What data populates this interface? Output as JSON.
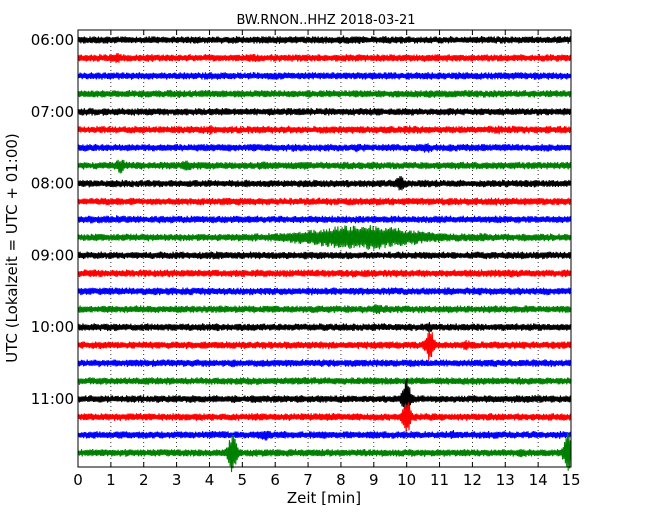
{
  "chart_data": {
    "type": "line",
    "title": "BW.RNON..HHZ 2018-03-21",
    "xlabel": "Zeit  [min]",
    "ylabel": "UTC (Lokalzeit = UTC + 01:00)",
    "xlim": [
      0,
      15
    ],
    "x_ticks": [
      "0",
      "1",
      "2",
      "3",
      "4",
      "5",
      "6",
      "7",
      "8",
      "9",
      "10",
      "11",
      "12",
      "13",
      "14",
      "15"
    ],
    "y_ticks": [
      "06:00",
      "07:00",
      "08:00",
      "09:00",
      "10:00",
      "11:00"
    ],
    "grid": "vertical dotted",
    "series_colors": [
      "#000000",
      "#ff0000",
      "#0000ff",
      "#008000"
    ],
    "traces": [
      {
        "start": "06:00",
        "events": [
          {
            "t": 8.1,
            "amp": 1.2
          },
          {
            "t": 9.7,
            "amp": 1.1
          }
        ]
      },
      {
        "start": "06:15",
        "events": [
          {
            "t": 1.2,
            "amp": 1.6
          },
          {
            "t": 5.3,
            "amp": 1.1
          }
        ]
      },
      {
        "start": "06:30",
        "events": [
          {
            "t": 4.1,
            "amp": 1.1
          },
          {
            "t": 11.6,
            "amp": 1.1
          }
        ]
      },
      {
        "start": "06:45",
        "events": [
          {
            "t": 3.0,
            "amp": 1.1
          },
          {
            "t": 10.7,
            "amp": 1.2
          }
        ]
      },
      {
        "start": "07:00",
        "events": [
          {
            "t": 2.5,
            "amp": 1.1
          },
          {
            "t": 4.5,
            "amp": 1.1
          }
        ]
      },
      {
        "start": "07:15",
        "events": [
          {
            "t": 4.0,
            "amp": 1.3
          },
          {
            "t": 10.0,
            "amp": 1.3
          },
          {
            "t": 12.8,
            "amp": 1.2
          }
        ]
      },
      {
        "start": "07:30",
        "events": [
          {
            "t": 8.5,
            "amp": 1.3
          },
          {
            "t": 10.6,
            "amp": 1.6
          },
          {
            "t": 13.0,
            "amp": 1.2
          }
        ]
      },
      {
        "start": "07:45",
        "events": [
          {
            "t": 1.3,
            "amp": 2.2
          },
          {
            "t": 3.3,
            "amp": 1.6
          },
          {
            "t": 5.6,
            "amp": 1.3
          },
          {
            "t": 6.9,
            "amp": 1.5
          }
        ]
      },
      {
        "start": "08:00",
        "events": [
          {
            "t": 9.8,
            "amp": 2.2
          }
        ]
      },
      {
        "start": "08:15",
        "events": [
          {
            "t": 4.6,
            "amp": 1.1
          },
          {
            "t": 12.7,
            "amp": 1.1
          }
        ]
      },
      {
        "start": "08:30",
        "events": [
          {
            "t": 1.2,
            "amp": 1.1
          },
          {
            "t": 11.0,
            "amp": 1.1
          }
        ]
      },
      {
        "start": "08:45",
        "events": [
          {
            "t": 8.6,
            "amp": 3.5,
            "w": 1.7
          },
          {
            "t": 12.3,
            "amp": 1.3
          }
        ]
      },
      {
        "start": "09:00",
        "events": [
          {
            "t": 4.2,
            "amp": 1.1
          }
        ]
      },
      {
        "start": "09:15",
        "events": [
          {
            "t": 13.2,
            "amp": 1.3
          }
        ]
      },
      {
        "start": "09:30",
        "events": [
          {
            "t": 9.4,
            "amp": 1.1
          }
        ]
      },
      {
        "start": "09:45",
        "events": [
          {
            "t": 9.1,
            "amp": 1.6
          }
        ]
      },
      {
        "start": "10:00",
        "events": [
          {
            "t": 10.7,
            "amp": 1.4
          }
        ]
      },
      {
        "start": "10:15",
        "events": [
          {
            "t": 10.7,
            "amp": 5.0
          },
          {
            "t": 11.8,
            "amp": 1.5
          }
        ]
      },
      {
        "start": "10:30",
        "events": [
          {
            "t": 4.8,
            "amp": 1.1
          }
        ]
      },
      {
        "start": "10:45",
        "events": [
          {
            "t": 9.0,
            "amp": 1.1
          },
          {
            "t": 11.8,
            "amp": 1.1
          }
        ]
      },
      {
        "start": "11:00",
        "events": [
          {
            "t": 10.0,
            "amp": 6.0
          }
        ]
      },
      {
        "start": "11:15",
        "events": [
          {
            "t": 10.0,
            "amp": 5.0
          }
        ]
      },
      {
        "start": "11:30",
        "events": [
          {
            "t": 5.7,
            "amp": 1.8
          },
          {
            "t": 11.4,
            "amp": 1.4
          }
        ]
      },
      {
        "start": "11:45",
        "events": [
          {
            "t": 4.7,
            "amp": 6.0
          },
          {
            "t": 14.9,
            "amp": 6.0
          },
          {
            "t": 13.5,
            "amp": 1.3
          }
        ]
      }
    ]
  }
}
